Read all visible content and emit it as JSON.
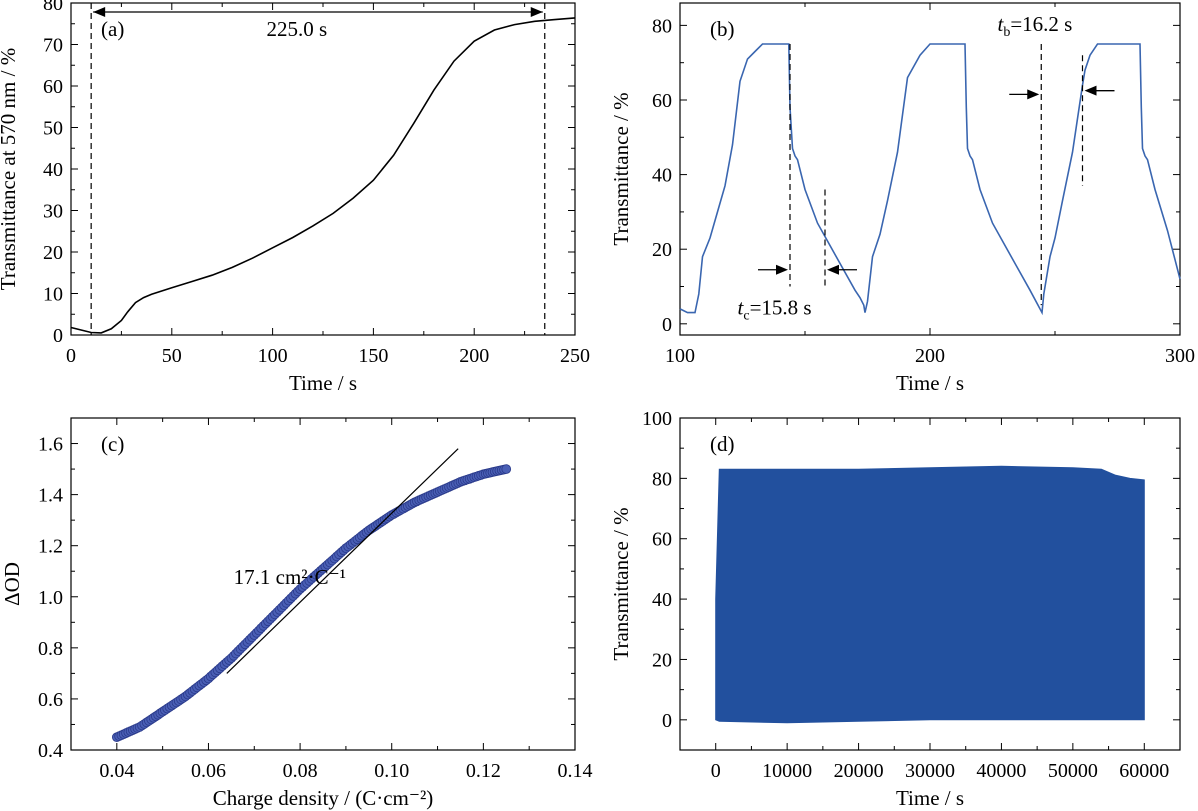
{
  "chart_data": [
    {
      "id": "a",
      "type": "line",
      "panel_label": "(a)",
      "xlabel": "Time / s",
      "ylabel": "Transmittance at 570 nm / %",
      "xlim": [
        0,
        250
      ],
      "ylim": [
        0,
        80
      ],
      "xticks": [
        0,
        50,
        100,
        150,
        200,
        250
      ],
      "yticks": [
        0,
        10,
        20,
        30,
        40,
        50,
        60,
        70,
        80
      ],
      "line_color": "#000000",
      "series": [
        {
          "x": [
            0,
            5,
            10,
            15,
            20,
            25,
            28,
            32,
            36,
            40,
            50,
            60,
            70,
            80,
            90,
            100,
            110,
            120,
            130,
            140,
            150,
            160,
            170,
            180,
            190,
            200,
            210,
            220,
            230,
            240,
            250
          ],
          "y": [
            1.8,
            1.2,
            0.6,
            0.5,
            1.5,
            3.5,
            5.5,
            7.8,
            9.0,
            9.8,
            11.4,
            12.9,
            14.4,
            16.3,
            18.5,
            21.0,
            23.5,
            26.3,
            29.3,
            33.0,
            37.3,
            43.3,
            51.0,
            59.0,
            66.0,
            70.8,
            73.5,
            74.8,
            75.6,
            76.0,
            76.4
          ]
        }
      ],
      "annotations": [
        {
          "text": "225.0 s",
          "x": 112,
          "y": 72
        },
        {
          "type": "vline",
          "x": 10
        },
        {
          "type": "vline",
          "x": 235
        },
        {
          "type": "double-arrow",
          "x1": 10,
          "x2": 235,
          "y": 83
        }
      ]
    },
    {
      "id": "b",
      "type": "line",
      "panel_label": "(b)",
      "xlabel": "Time / s",
      "ylabel": "Transmittance / %",
      "xlim": [
        100,
        300
      ],
      "ylim": [
        -3,
        86
      ],
      "xticks": [
        100,
        200,
        300
      ],
      "yticks": [
        0,
        20,
        40,
        60,
        80
      ],
      "line_color": "#3a66b0",
      "series": [
        {
          "x": [
            100,
            103,
            106,
            107.5,
            109,
            112,
            115,
            118,
            121,
            124,
            127,
            130,
            133,
            136,
            140,
            143.5,
            144,
            145,
            146,
            147,
            150,
            155,
            160,
            165,
            170,
            172,
            173.5,
            174,
            175,
            177,
            180,
            183,
            187,
            191,
            196,
            200,
            205,
            211,
            214,
            214.5,
            215,
            216,
            217,
            220,
            225,
            230,
            235,
            240,
            244,
            244.8,
            245.5,
            248,
            250,
            253,
            257,
            261,
            262,
            264,
            267,
            270,
            275,
            280,
            284,
            284.5,
            285,
            286,
            287,
            290,
            295,
            300
          ],
          "y": [
            4,
            3,
            3,
            8,
            18,
            23,
            30,
            37,
            48,
            65,
            71,
            73,
            75,
            75,
            75,
            75,
            58,
            47,
            45,
            44,
            36,
            27,
            21,
            15,
            9,
            7,
            5,
            3,
            6,
            18,
            24,
            33,
            46,
            66,
            72,
            75,
            75,
            75,
            75,
            58,
            47,
            45,
            44,
            36,
            27,
            21,
            15,
            9,
            4,
            3,
            8,
            18,
            23,
            33,
            46,
            64,
            68,
            72,
            75,
            75,
            75,
            75,
            75,
            58,
            47,
            45,
            44,
            36,
            25,
            12
          ]
        }
      ],
      "annotations": [
        {
          "text": "t",
          "sub": "c",
          "rest": "=15.8 s"
        },
        {
          "text": "t",
          "sub": "b",
          "rest": "=16.2 s"
        },
        {
          "type": "vline",
          "x": 144,
          "y1": 75,
          "y2": 10
        },
        {
          "type": "vline",
          "x": 158,
          "y1": 36,
          "y2": 10
        },
        {
          "type": "vline",
          "x": 244.5,
          "y1": 75,
          "y2": 5
        },
        {
          "type": "vline",
          "x": 261,
          "y1": 72,
          "y2": 37
        }
      ]
    },
    {
      "id": "c",
      "type": "scatter",
      "panel_label": "(c)",
      "xlabel": "Charge density / (C·cm⁻²)",
      "ylabel": "ΔOD",
      "xlim": [
        0.03,
        0.14
      ],
      "ylim": [
        0.4,
        1.7
      ],
      "xticks": [
        0.04,
        0.06,
        0.08,
        0.1,
        0.12,
        0.14
      ],
      "yticks": [
        0.4,
        0.6,
        0.8,
        1.0,
        1.2,
        1.4,
        1.6
      ],
      "marker_color": "#4a5fb5",
      "fit_text": "17.1 cm²·C⁻¹",
      "fit_line": {
        "x": [
          0.064,
          0.1145
        ],
        "y": [
          0.7,
          1.58
        ]
      },
      "series": [
        {
          "x": [
            0.04,
            0.045,
            0.05,
            0.055,
            0.06,
            0.065,
            0.07,
            0.075,
            0.08,
            0.085,
            0.09,
            0.095,
            0.1,
            0.105,
            0.11,
            0.115,
            0.12,
            0.125
          ],
          "y": [
            0.45,
            0.49,
            0.55,
            0.61,
            0.68,
            0.76,
            0.85,
            0.94,
            1.03,
            1.11,
            1.19,
            1.26,
            1.32,
            1.37,
            1.41,
            1.45,
            1.48,
            1.5
          ]
        }
      ]
    },
    {
      "id": "d",
      "type": "area",
      "panel_label": "(d)",
      "xlabel": "Time / s",
      "ylabel": "Transmittance / %",
      "xlim": [
        -5000,
        65000
      ],
      "ylim": [
        -10,
        100
      ],
      "xticks": [
        0,
        10000,
        20000,
        30000,
        40000,
        50000,
        60000
      ],
      "yticks": [
        0,
        20,
        40,
        60,
        80,
        100
      ],
      "fill_color": "#22509e",
      "series": [
        {
          "x": [
            0,
            500,
            10000,
            20000,
            30000,
            40000,
            50000,
            54000,
            56000,
            58000,
            60000
          ],
          "upper": [
            40,
            83,
            83,
            83,
            83.5,
            84,
            83.5,
            83,
            81,
            80,
            79.5
          ],
          "lower": [
            0,
            -0.5,
            -1,
            -0.5,
            0,
            0,
            0,
            0,
            0,
            0,
            0
          ]
        }
      ]
    }
  ]
}
